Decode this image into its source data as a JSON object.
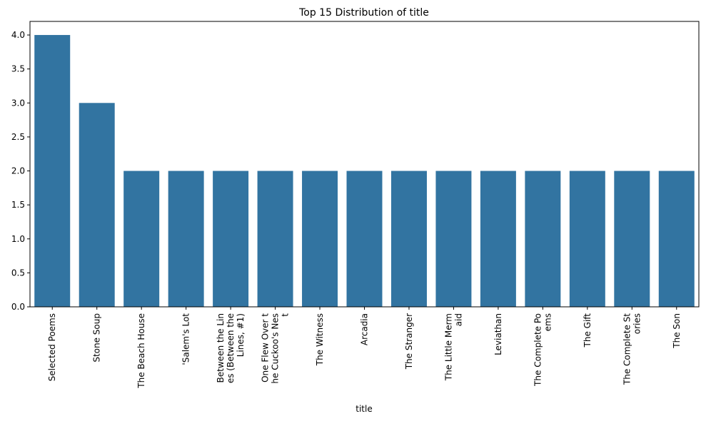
{
  "chart_data": {
    "type": "bar",
    "title": "Top 15 Distribution of title",
    "xlabel": "title",
    "ylabel": "",
    "ylim": [
      0,
      4.2
    ],
    "yticks": [
      "0.0",
      "0.5",
      "1.0",
      "1.5",
      "2.0",
      "2.5",
      "3.0",
      "3.5",
      "4.0"
    ],
    "ytick_values": [
      0,
      0.5,
      1.0,
      1.5,
      2.0,
      2.5,
      3.0,
      3.5,
      4.0
    ],
    "grid": false,
    "bar_color": "#3274a1",
    "categories": [
      "Selected Poems",
      "Stone Soup",
      "The Beach House",
      "'Salem's Lot",
      "Between the Lines (Between the Lines, #1)",
      "One Flew Over the Cuckoo's Nest",
      "The Witness",
      "Arcadia",
      "The Stranger",
      "The Little Mermaid",
      "Leviathan",
      "The Complete Poems",
      "The Gift",
      "The Complete Stories",
      "The Son"
    ],
    "category_labels": [
      [
        "Selected Poems"
      ],
      [
        "Stone Soup"
      ],
      [
        "The Beach House"
      ],
      [
        "'Salem's Lot"
      ],
      [
        "Between the Lin",
        "es (Between the",
        "Lines, #1)"
      ],
      [
        "One Flew Over t",
        "he Cuckoo's Nes",
        "t"
      ],
      [
        "The Witness"
      ],
      [
        "Arcadia"
      ],
      [
        "The Stranger"
      ],
      [
        "The Little Merm",
        "aid"
      ],
      [
        "Leviathan"
      ],
      [
        "The Complete Po",
        "ems"
      ],
      [
        "The Gift"
      ],
      [
        "The Complete St",
        "ories"
      ],
      [
        "The Son"
      ]
    ],
    "values": [
      4,
      3,
      2,
      2,
      2,
      2,
      2,
      2,
      2,
      2,
      2,
      2,
      2,
      2,
      2
    ]
  }
}
